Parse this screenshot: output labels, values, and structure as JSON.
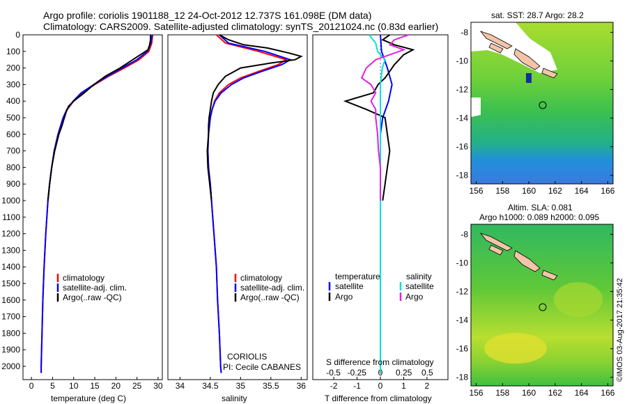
{
  "header": {
    "line1": "Argo profile: coriolis 1901188_12 24-Oct-2012 12.737S 161.098E (DM data)",
    "line2": "Climatology: CARS2009. Satellite-adjusted climatology: synTS_20121024.nc (0.83d earlier)"
  },
  "panels": {
    "temperature": {
      "xlabel": "temperature (deg C)",
      "xticks": [
        "0",
        "5",
        "10",
        "15",
        "20",
        "25",
        "30"
      ],
      "legend": [
        "climatology",
        "satellite-adj. clim.",
        "Argo(..raw -QC)"
      ]
    },
    "salinity": {
      "xlabel": "salinity",
      "xticks": [
        "34",
        "34.5",
        "35",
        "35.5",
        "36"
      ],
      "legend": [
        "climatology",
        "satellite-adj. clim.",
        "Argo(..raw -QC)"
      ],
      "institution": "CORIOLIS",
      "pi": "PI: Cecile CABANES"
    },
    "difference": {
      "xlabel_top": "S difference from climatology",
      "xlabel_bottom": "T difference from climatology",
      "s_ticks": [
        "-0.5",
        "-0.25",
        "0",
        "0.25",
        "0.5"
      ],
      "t_ticks": [
        "-2",
        "-1",
        "0",
        "1",
        "2"
      ],
      "legend_temp_head": "temperature",
      "legend_sal_head": "salinity",
      "legend_temp": [
        "satellite",
        "Argo"
      ],
      "legend_sal": [
        "satellite",
        "Argo"
      ]
    }
  },
  "depth_ticks": [
    "0",
    "100",
    "200",
    "300",
    "400",
    "500",
    "600",
    "700",
    "800",
    "900",
    "1000",
    "1100",
    "1200",
    "1300",
    "1400",
    "1500",
    "1600",
    "1700",
    "1800",
    "1900",
    "2000"
  ],
  "maps": {
    "sst_title": "sat. SST: 28.7 Argo: 28.2",
    "sla_title1": "Altim. SLA: 0.081",
    "sla_title2": "Argo h1000: 0.089 h2000: 0.095",
    "lat_ticks_top": [
      "-8",
      "-10",
      "-12",
      "-14",
      "-16",
      "-18"
    ],
    "lat_ticks_bottom": [
      "-8",
      "-10",
      "-12",
      "-14",
      "-16",
      "-18"
    ],
    "lon_ticks": [
      "156",
      "158",
      "160",
      "162",
      "164",
      "166"
    ]
  },
  "footer": {
    "credit": "©IMOS 03-Aug-2017 21:35:42"
  },
  "colors": {
    "climatology": "#ff0000",
    "satellite": "#0000ff",
    "argo": "#000000",
    "sat_sal": "#00e0e0",
    "argo_sal": "#e020e0"
  },
  "chart_data": [
    {
      "type": "line",
      "name": "temperature",
      "xlim": [
        -2,
        31
      ],
      "ylim": [
        2080,
        0
      ],
      "xlabel": "temperature (deg C)",
      "ylabel": "depth",
      "series": [
        {
          "name": "climatology",
          "depth": [
            0,
            50,
            100,
            150,
            200,
            250,
            300,
            350,
            400,
            450,
            500,
            600,
            700,
            800,
            900,
            1000,
            1200,
            1400,
            1600,
            1800,
            2000,
            2040
          ],
          "values": [
            28.7,
            28.5,
            27.8,
            25.5,
            22,
            18.3,
            15,
            12,
            10,
            8.5,
            7.5,
            6.3,
            5.4,
            4.8,
            4.3,
            3.9,
            3.4,
            3.0,
            2.7,
            2.5,
            2.3,
            2.3
          ]
        },
        {
          "name": "satellite-adj. clim.",
          "depth": [
            0,
            50,
            100,
            150,
            200,
            250,
            300,
            350,
            400,
            450,
            500,
            600,
            700,
            800,
            900,
            1000,
            1200,
            1400,
            1600,
            1800,
            2000,
            2040
          ],
          "values": [
            28.6,
            28.3,
            27.5,
            25.0,
            21.5,
            18.0,
            14.8,
            11.8,
            9.9,
            8.4,
            7.5,
            6.3,
            5.4,
            4.8,
            4.3,
            3.9,
            3.4,
            3.0,
            2.7,
            2.5,
            2.3,
            2.3
          ]
        },
        {
          "name": "Argo(..raw -QC)",
          "depth": [
            0,
            30,
            60,
            90,
            120,
            150,
            200,
            250,
            300,
            350,
            400,
            430,
            460,
            500,
            550,
            600,
            700,
            800,
            900,
            1000
          ],
          "values": [
            28.2,
            28.2,
            28.0,
            27.6,
            25.8,
            24.0,
            21.0,
            17.5,
            14.8,
            12.5,
            10.0,
            8.8,
            8.3,
            7.8,
            7.2,
            6.5,
            5.5,
            4.8,
            4.3,
            3.9
          ]
        }
      ]
    },
    {
      "type": "line",
      "name": "salinity",
      "xlim": [
        33.8,
        36.1
      ],
      "ylim": [
        2080,
        0
      ],
      "xlabel": "salinity",
      "ylabel": "depth",
      "series": [
        {
          "name": "climatology",
          "depth": [
            0,
            50,
            100,
            150,
            180,
            220,
            260,
            300,
            350,
            400,
            450,
            500,
            600,
            700,
            800,
            900,
            1000,
            1200,
            1400,
            1600,
            1800,
            2000,
            2040
          ],
          "values": [
            34.6,
            34.75,
            35.3,
            35.75,
            35.62,
            35.3,
            35.0,
            34.8,
            34.65,
            34.57,
            34.53,
            34.5,
            34.47,
            34.46,
            34.47,
            34.5,
            34.52,
            34.56,
            34.6,
            34.62,
            34.65,
            34.67,
            34.68
          ]
        },
        {
          "name": "satellite-adj. clim.",
          "depth": [
            0,
            50,
            100,
            150,
            180,
            220,
            260,
            300,
            350,
            400,
            450,
            500,
            600,
            700,
            800,
            900,
            1000,
            1200,
            1400,
            1600,
            1800,
            2000,
            2040
          ],
          "values": [
            34.65,
            34.8,
            35.4,
            35.82,
            35.68,
            35.35,
            35.05,
            34.85,
            34.68,
            34.58,
            34.53,
            34.5,
            34.47,
            34.46,
            34.47,
            34.5,
            34.52,
            34.56,
            34.6,
            34.62,
            34.65,
            34.67,
            34.68
          ]
        },
        {
          "name": "Argo(..raw -QC)",
          "depth": [
            0,
            30,
            60,
            80,
            110,
            130,
            150,
            170,
            200,
            250,
            300,
            350,
            400,
            450,
            500,
            550,
            600,
            700,
            800,
            900,
            1000
          ],
          "values": [
            34.65,
            34.8,
            35.05,
            35.45,
            35.8,
            36.0,
            35.9,
            35.5,
            35.0,
            34.75,
            34.63,
            34.55,
            34.52,
            34.5,
            34.48,
            34.47,
            34.47,
            34.45,
            34.46,
            34.49,
            34.52
          ]
        }
      ]
    },
    {
      "type": "line",
      "name": "difference from climatology",
      "t_xlim": [
        -2.9,
        2.9
      ],
      "s_xlim": [
        -0.72,
        0.72
      ],
      "ylim": [
        2080,
        0
      ],
      "series": [
        {
          "name": "temperature satellite",
          "axis": "T",
          "depth": [
            0,
            100,
            200,
            300,
            400,
            500,
            600,
            700,
            800,
            1000,
            2040
          ],
          "values": [
            0.0,
            0.05,
            0.3,
            0.5,
            0.35,
            0.1,
            0.0,
            0.0,
            0.0,
            0.0,
            0.0
          ]
        },
        {
          "name": "temperature Argo",
          "axis": "T",
          "depth": [
            0,
            30,
            60,
            90,
            120,
            150,
            180,
            220,
            260,
            300,
            350,
            400,
            450,
            500,
            600,
            700,
            800,
            900,
            1000
          ],
          "values": [
            0.4,
            0.1,
            0.6,
            1.4,
            1.0,
            0.8,
            0.6,
            0.4,
            0.2,
            -0.1,
            -0.3,
            -1.5,
            -0.6,
            0.2,
            0.3,
            0.4,
            0.3,
            0.2,
            0.1
          ]
        },
        {
          "name": "salinity satellite",
          "axis": "S",
          "depth": [
            0,
            50,
            100,
            150,
            200,
            300,
            400,
            500,
            700,
            1000,
            2040
          ],
          "values": [
            -0.12,
            -0.05,
            -0.03,
            0.05,
            0.02,
            0.0,
            0.0,
            0.0,
            0.0,
            0.0,
            0.0
          ]
        },
        {
          "name": "salinity Argo",
          "axis": "S",
          "depth": [
            0,
            30,
            60,
            90,
            120,
            150,
            200,
            260,
            300,
            350,
            400,
            450,
            500,
            600,
            700,
            800,
            1000
          ],
          "values": [
            0.3,
            0.15,
            0.1,
            0.25,
            0.1,
            -0.05,
            -0.15,
            -0.2,
            -0.1,
            -0.05,
            -0.1,
            -0.05,
            -0.05,
            -0.03,
            -0.02,
            0.0,
            0.0
          ]
        }
      ]
    }
  ]
}
